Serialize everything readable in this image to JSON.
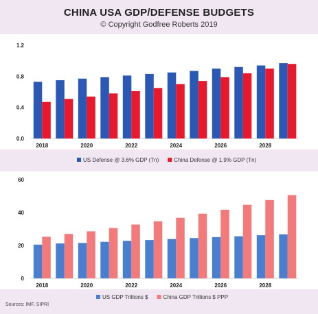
{
  "title": "CHINA USA GDP/DEFENSE BUDGETS",
  "subtitle": "© Copyright Godfree Roberts 2019",
  "sources": "Sources: IMF, SIPRI",
  "chart_data": [
    {
      "type": "bar",
      "x": [
        2018,
        2019,
        2020,
        2021,
        2022,
        2023,
        2024,
        2025,
        2026,
        2027,
        2028,
        2029
      ],
      "x_tick_labels": [
        "2018",
        "2020",
        "2022",
        "2024",
        "2026",
        "2028"
      ],
      "ylim": [
        0,
        1.2
      ],
      "y_ticks": [
        "0.0",
        "0.4",
        "0.8",
        "1.2"
      ],
      "y_tick_values": [
        0,
        0.4,
        0.8,
        1.2
      ],
      "grid": false,
      "legend_position": "bottom",
      "series": [
        {
          "name": "US Defense @ 3.6% GDP (Tn)",
          "color": "#2b58b4",
          "values": [
            0.73,
            0.75,
            0.77,
            0.79,
            0.81,
            0.83,
            0.85,
            0.87,
            0.9,
            0.92,
            0.94,
            0.97
          ]
        },
        {
          "name": "China Defense @ 1.9% GDP (Tn)",
          "color": "#e8192c",
          "values": [
            0.47,
            0.51,
            0.54,
            0.58,
            0.61,
            0.65,
            0.7,
            0.74,
            0.79,
            0.84,
            0.9,
            0.96
          ]
        }
      ]
    },
    {
      "type": "bar",
      "x": [
        2018,
        2019,
        2020,
        2021,
        2022,
        2023,
        2024,
        2025,
        2026,
        2027,
        2028,
        2029
      ],
      "x_tick_labels": [
        "2018",
        "2020",
        "2022",
        "2024",
        "2026",
        "2028"
      ],
      "ylim": [
        0,
        60
      ],
      "y_ticks": [
        "0",
        "20",
        "40",
        "60"
      ],
      "y_tick_values": [
        0,
        20,
        40,
        60
      ],
      "grid": false,
      "legend_position": "bottom",
      "series": [
        {
          "name": "US GDP Trillions $",
          "color": "#4a7fd0",
          "values": [
            20.5,
            21.2,
            21.5,
            22.2,
            22.8,
            23.3,
            23.9,
            24.5,
            25.1,
            25.6,
            26.2,
            26.8
          ]
        },
        {
          "name": "China GDP Trillions $ PPP",
          "color": "#f27a7a",
          "values": [
            25.3,
            27.0,
            28.6,
            30.6,
            32.7,
            34.7,
            36.8,
            39.3,
            41.7,
            44.7,
            47.6,
            50.6
          ]
        }
      ]
    }
  ]
}
